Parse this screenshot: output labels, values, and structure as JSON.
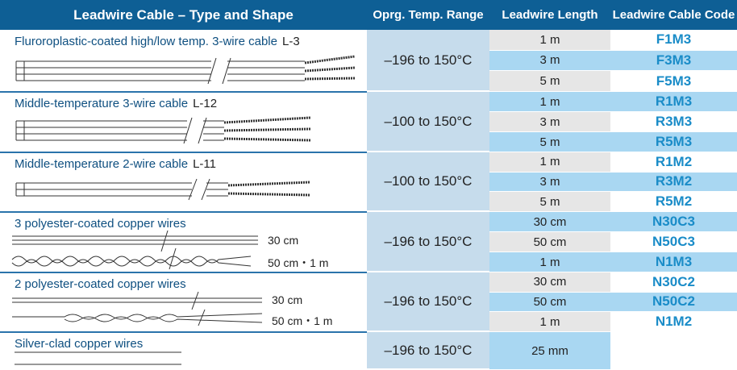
{
  "header": [
    "Leadwire Cable – Type and Shape",
    "Oprg. Temp. Range",
    "Leadwire Length",
    "Leadwire Cable Code"
  ],
  "groups": [
    {
      "name": "Fluroroplastic-coated high/low temp. 3-wire cable",
      "model": "L-3",
      "temp": "–196 to 150°C",
      "rows": [
        {
          "length": "1 m",
          "code": "F1M3"
        },
        {
          "length": "3 m",
          "code": "F3M3"
        },
        {
          "length": "5 m",
          "code": "F5M3"
        }
      ]
    },
    {
      "name": "Middle-temperature 3-wire cable",
      "model": "L-12",
      "temp": "–100 to 150°C",
      "rows": [
        {
          "length": "1 m",
          "code": "R1M3"
        },
        {
          "length": "3 m",
          "code": "R3M3"
        },
        {
          "length": "5 m",
          "code": "R5M3"
        }
      ]
    },
    {
      "name": "Middle-temperature 2-wire cable",
      "model": "L-11",
      "temp": "–100 to 150°C",
      "rows": [
        {
          "length": "1 m",
          "code": "R1M2"
        },
        {
          "length": "3 m",
          "code": "R3M2"
        },
        {
          "length": "5 m",
          "code": "R5M2"
        }
      ]
    },
    {
      "name": "3 polyester-coated copper wires",
      "labels": [
        "30 cm",
        "50 cm・1 m"
      ],
      "temp": "–196 to 150°C",
      "rows": [
        {
          "length": "30 cm",
          "code": "N30C3"
        },
        {
          "length": "50 cm",
          "code": "N50C3"
        },
        {
          "length": "1 m",
          "code": "N1M3"
        }
      ]
    },
    {
      "name": "2 polyester-coated copper wires",
      "labels": [
        "30 cm",
        "50 cm・1 m"
      ],
      "temp": "–196 to 150°C",
      "rows": [
        {
          "length": "30 cm",
          "code": "N30C2"
        },
        {
          "length": "50 cm",
          "code": "N50C2"
        },
        {
          "length": "1 m",
          "code": "N1M2"
        }
      ]
    },
    {
      "name": "Silver-clad copper wires",
      "temp": "–196 to 150°C",
      "rows": [
        {
          "length": "25 mm"
        }
      ]
    }
  ]
}
